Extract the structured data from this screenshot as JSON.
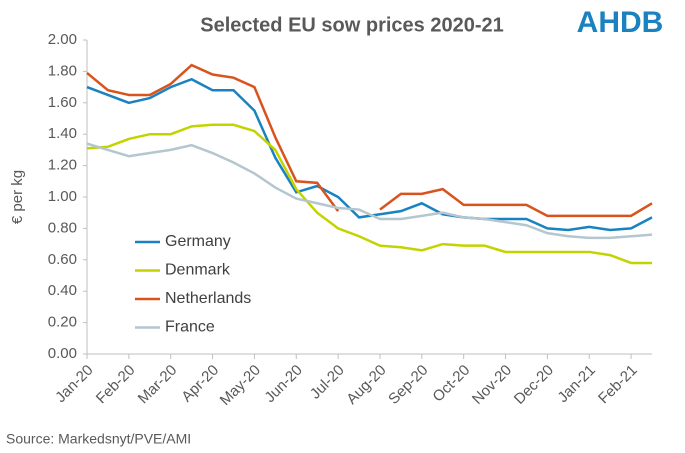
{
  "chart_data": {
    "type": "line",
    "title": "Selected EU sow prices 2020-21",
    "logo": "AHDB",
    "source": "Source: Markedsnyt/PVE/AMI",
    "y_label": "€ per kg",
    "categories": [
      "Jan-20",
      null,
      "Feb-20",
      null,
      "Mar-20",
      null,
      "Apr-20",
      null,
      "May-20",
      null,
      "Jun-20",
      null,
      "Jul-20",
      null,
      "Aug-20",
      null,
      "Sep-20",
      null,
      "Oct-20",
      null,
      "Nov-20",
      null,
      "Dec-20",
      null,
      "Jan-21",
      null,
      "Feb-21",
      null
    ],
    "ylim": [
      0,
      2
    ],
    "yticks": [
      {
        "value": 0,
        "label": "0.00"
      },
      {
        "value": 0.2,
        "label": "0.20"
      },
      {
        "value": 0.4,
        "label": "0.40"
      },
      {
        "value": 0.6,
        "label": "0.60"
      },
      {
        "value": 0.8,
        "label": "0.80"
      },
      {
        "value": 1,
        "label": "1.00"
      },
      {
        "value": 1.2,
        "label": "1.20"
      },
      {
        "value": 1.4,
        "label": "1.40"
      },
      {
        "value": 1.6,
        "label": "1.60"
      },
      {
        "value": 1.8,
        "label": "1.80"
      },
      {
        "value": 2,
        "label": "2.00"
      }
    ],
    "grid": false,
    "legend": "left",
    "series": [
      {
        "name": "Germany",
        "color": "#1a82c0",
        "values": [
          1.7,
          1.65,
          1.6,
          1.63,
          1.7,
          1.75,
          1.68,
          1.68,
          1.55,
          1.25,
          1.03,
          1.07,
          1.0,
          0.87,
          0.89,
          0.91,
          0.96,
          0.89,
          0.87,
          0.86,
          0.86,
          0.86,
          0.8,
          0.79,
          0.81,
          0.79,
          0.8,
          0.87
        ]
      },
      {
        "name": "Denmark",
        "color": "#c3d300",
        "values": [
          1.31,
          1.32,
          1.37,
          1.4,
          1.4,
          1.45,
          1.46,
          1.46,
          1.42,
          1.3,
          1.05,
          0.9,
          0.8,
          0.75,
          0.69,
          0.68,
          0.66,
          0.7,
          0.69,
          0.69,
          0.65,
          0.65,
          0.65,
          0.65,
          0.65,
          0.63,
          0.58,
          0.58
        ]
      },
      {
        "name": "Netherlands",
        "color": "#d9531e",
        "values": [
          1.79,
          1.68,
          1.65,
          1.65,
          1.72,
          1.84,
          1.78,
          1.76,
          1.7,
          1.38,
          1.1,
          1.09,
          0.91,
          null,
          0.92,
          1.02,
          1.02,
          1.05,
          0.95,
          0.95,
          0.95,
          0.95,
          0.88,
          0.88,
          0.88,
          0.88,
          0.88,
          0.96
        ]
      },
      {
        "name": "France",
        "color": "#b4c6cf",
        "values": [
          1.34,
          1.3,
          1.26,
          1.28,
          1.3,
          1.33,
          1.28,
          1.22,
          1.15,
          1.06,
          0.99,
          0.96,
          0.93,
          0.92,
          0.86,
          0.86,
          0.88,
          0.9,
          0.87,
          0.86,
          0.84,
          0.82,
          0.77,
          0.75,
          0.74,
          0.74,
          0.75,
          0.76
        ]
      }
    ]
  }
}
